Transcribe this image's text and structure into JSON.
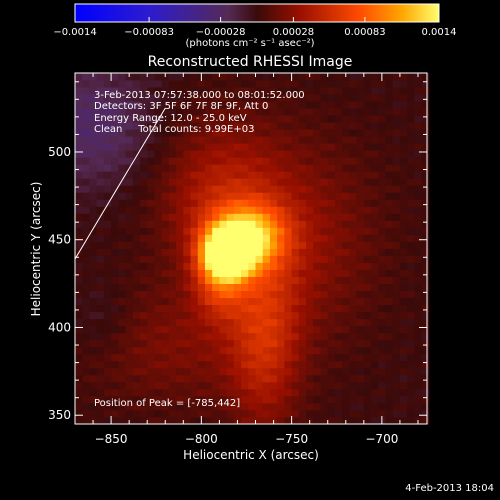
{
  "chart_data": {
    "type": "heatmap",
    "title": "Reconstructed RHESSI Image",
    "xlabel": "Heliocentric X (arcsec)",
    "ylabel": "Heliocentric Y (arcsec)",
    "xlim": [
      -870,
      -675
    ],
    "ylim": [
      345,
      545
    ],
    "xticks": [
      {
        "v": -850,
        "label": "−850"
      },
      {
        "v": -800,
        "label": "−800"
      },
      {
        "v": -750,
        "label": "−750"
      },
      {
        "v": -700,
        "label": "−700"
      }
    ],
    "yticks": [
      {
        "v": 350,
        "label": "350"
      },
      {
        "v": 400,
        "label": "400"
      },
      {
        "v": 450,
        "label": "450"
      },
      {
        "v": 500,
        "label": "500"
      }
    ],
    "colorbar": {
      "min": -0.0014,
      "max": 0.0014,
      "ticks": [
        {
          "v": -0.0014,
          "label": "−0.0014"
        },
        {
          "v": -0.00083,
          "label": "−0.00083"
        },
        {
          "v": -0.00028,
          "label": "−0.00028"
        },
        {
          "v": 0.00028,
          "label": "0.00028"
        },
        {
          "v": 0.00083,
          "label": "0.00083"
        },
        {
          "v": 0.0014,
          "label": "0.0014"
        }
      ],
      "unit": "(photons cm⁻² s⁻¹ asec⁻²)"
    },
    "sources": [
      {
        "x": -785,
        "y": 442,
        "sx": 9,
        "sy": 9,
        "amp": 0.0014
      },
      {
        "x": -775,
        "y": 452,
        "sx": 14,
        "sy": 12,
        "amp": 0.00095
      },
      {
        "x": -790,
        "y": 430,
        "sx": 10,
        "sy": 16,
        "amp": 0.00055
      },
      {
        "x": -765,
        "y": 395,
        "sx": 14,
        "sy": 38,
        "amp": 0.00045
      },
      {
        "x": -790,
        "y": 475,
        "sx": 24,
        "sy": 30,
        "amp": 0.0004
      },
      {
        "x": -745,
        "y": 450,
        "sx": 30,
        "sy": 40,
        "amp": 0.00028
      },
      {
        "x": -815,
        "y": 390,
        "sx": 35,
        "sy": 25,
        "amp": 0.00022
      },
      {
        "x": -860,
        "y": 515,
        "sx": 25,
        "sy": 25,
        "amp": -0.0003
      },
      {
        "x": -855,
        "y": 405,
        "sx": 12,
        "sy": 15,
        "amp": -0.00012
      }
    ],
    "limb_line": [
      [
        -870,
        439
      ],
      [
        -820,
        525
      ]
    ],
    "peak": [
      -785,
      442
    ],
    "info": [
      "3-Feb-2013 07:57:38.000 to 08:01:52.000",
      "Detectors: 3F 5F 6F 7F 8F 9F, Att 0",
      "Energy Range: 12.0 - 25.0 keV",
      "Clean     Total counts: 9.99E+03"
    ],
    "peak_label": "Position of Peak = [-785,442]"
  },
  "footer": {
    "date": "4-Feb-2013 18:04"
  }
}
